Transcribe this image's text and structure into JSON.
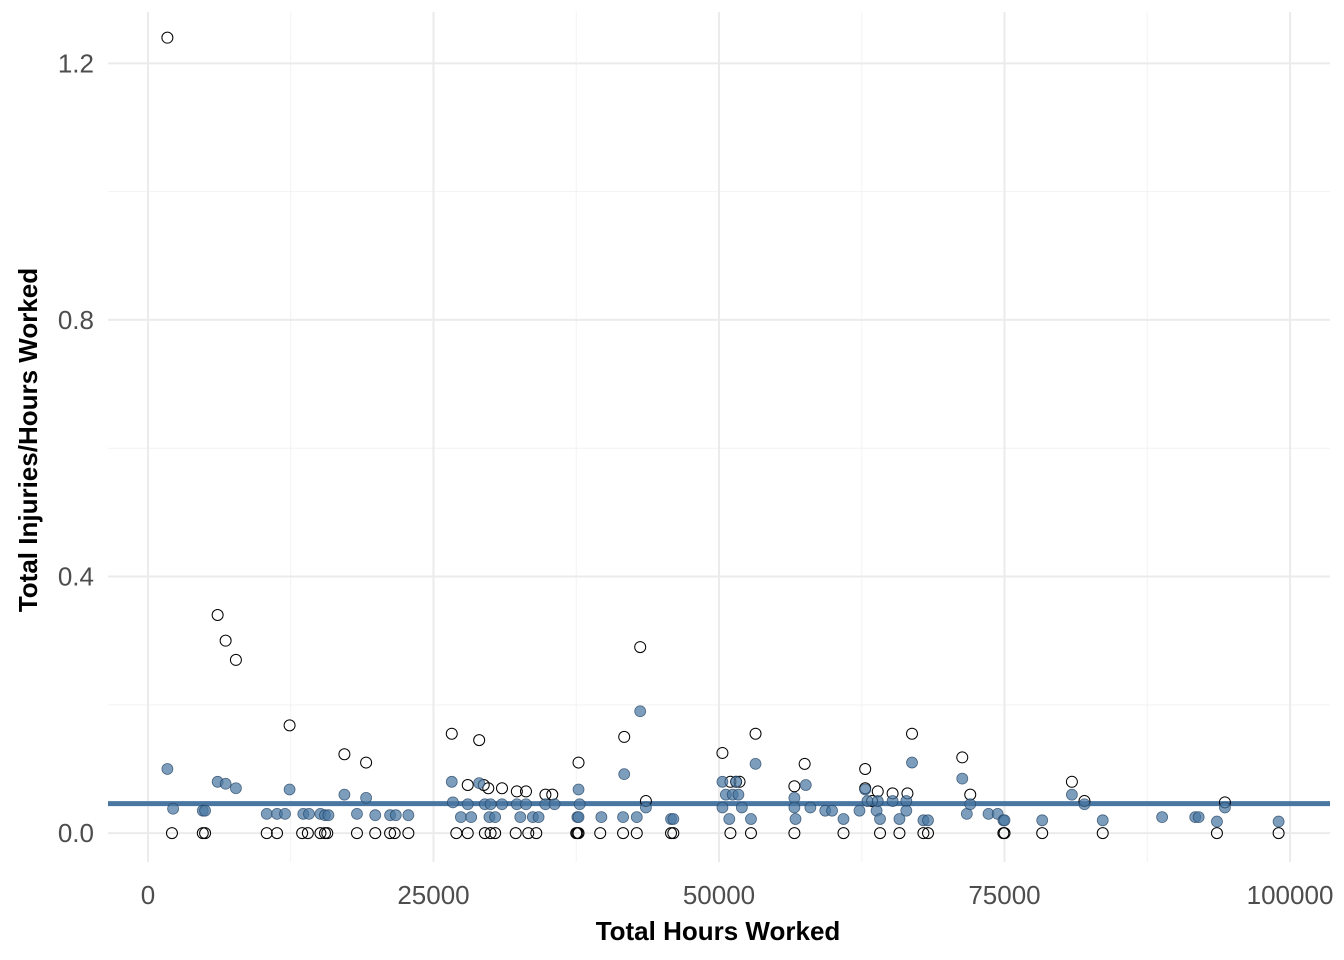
{
  "chart_data": {
    "type": "scatter",
    "title": "",
    "xlabel": "Total Hours Worked",
    "ylabel": "Total Injuries/Hours Worked",
    "xlim": [
      -3500,
      103500
    ],
    "ylim": [
      -0.045,
      1.28
    ],
    "x_ticks": [
      0,
      25000,
      50000,
      75000,
      100000
    ],
    "x_tick_labels": [
      "0",
      "25000",
      "50000",
      "75000",
      "100000"
    ],
    "y_ticks": [
      0.0,
      0.4,
      0.8,
      1.2
    ],
    "y_tick_labels": [
      "0.0",
      "0.4",
      "0.8",
      "1.2"
    ],
    "grid": true,
    "legend": "none",
    "reference_line": {
      "y": 0.046,
      "color": "#4a77a2"
    },
    "colors": {
      "filled": "#4a77a2",
      "hollow_stroke": "#000000"
    },
    "series": [
      {
        "style": "hollow",
        "points": [
          [
            1700,
            1.24
          ],
          [
            6100,
            0.34
          ],
          [
            6800,
            0.3
          ],
          [
            7700,
            0.27
          ],
          [
            12400,
            0.168
          ],
          [
            17200,
            0.123
          ],
          [
            19100,
            0.11
          ],
          [
            26600,
            0.155
          ],
          [
            29000,
            0.145
          ],
          [
            37700,
            0.11
          ],
          [
            41700,
            0.15
          ],
          [
            43100,
            0.29
          ],
          [
            43600,
            0.05
          ],
          [
            50300,
            0.125
          ],
          [
            53200,
            0.155
          ],
          [
            57500,
            0.108
          ],
          [
            62800,
            0.1
          ],
          [
            66900,
            0.155
          ],
          [
            71300,
            0.118
          ],
          [
            72000,
            0.06
          ],
          [
            80900,
            0.08
          ],
          [
            82000,
            0.05
          ],
          [
            94300,
            0.048
          ],
          [
            28000,
            0.075
          ],
          [
            29400,
            0.075
          ],
          [
            29800,
            0.07
          ],
          [
            31000,
            0.07
          ],
          [
            32300,
            0.065
          ],
          [
            33100,
            0.065
          ],
          [
            34800,
            0.06
          ],
          [
            35400,
            0.06
          ],
          [
            51000,
            0.08
          ],
          [
            51500,
            0.08
          ],
          [
            51800,
            0.08
          ],
          [
            56600,
            0.073
          ],
          [
            62800,
            0.07
          ],
          [
            63900,
            0.065
          ],
          [
            65200,
            0.062
          ],
          [
            66500,
            0.062
          ],
          [
            63400,
            0.05
          ],
          [
            2100,
            0.0
          ],
          [
            4800,
            0.0
          ],
          [
            5000,
            0.0
          ],
          [
            10400,
            0.0
          ],
          [
            11300,
            0.0
          ],
          [
            13500,
            0.0
          ],
          [
            14000,
            0.0
          ],
          [
            15100,
            0.0
          ],
          [
            15500,
            0.0
          ],
          [
            15700,
            0.0
          ],
          [
            18300,
            0.0
          ],
          [
            19900,
            0.0
          ],
          [
            21200,
            0.0
          ],
          [
            21600,
            0.0
          ],
          [
            22800,
            0.0
          ],
          [
            27000,
            0.0
          ],
          [
            28000,
            0.0
          ],
          [
            29500,
            0.0
          ],
          [
            30000,
            0.0
          ],
          [
            30400,
            0.0
          ],
          [
            32200,
            0.0
          ],
          [
            33300,
            0.0
          ],
          [
            34000,
            0.0
          ],
          [
            37500,
            0.0
          ],
          [
            37600,
            0.0
          ],
          [
            37700,
            0.0
          ],
          [
            39600,
            0.0
          ],
          [
            41600,
            0.0
          ],
          [
            42800,
            0.0
          ],
          [
            45800,
            0.0
          ],
          [
            46000,
            0.0
          ],
          [
            51000,
            0.0
          ],
          [
            52800,
            0.0
          ],
          [
            56600,
            0.0
          ],
          [
            60900,
            0.0
          ],
          [
            64100,
            0.0
          ],
          [
            65800,
            0.0
          ],
          [
            67900,
            0.0
          ],
          [
            68300,
            0.0
          ],
          [
            74900,
            0.0
          ],
          [
            75000,
            0.0
          ],
          [
            78300,
            0.0
          ],
          [
            83600,
            0.0
          ],
          [
            93600,
            0.0
          ],
          [
            99000,
            0.0
          ]
        ]
      },
      {
        "style": "filled",
        "points": [
          [
            1700,
            0.1
          ],
          [
            2200,
            0.038
          ],
          [
            4800,
            0.035
          ],
          [
            5000,
            0.035
          ],
          [
            6100,
            0.08
          ],
          [
            6800,
            0.077
          ],
          [
            7700,
            0.07
          ],
          [
            10400,
            0.03
          ],
          [
            11300,
            0.03
          ],
          [
            12000,
            0.03
          ],
          [
            12400,
            0.068
          ],
          [
            13600,
            0.03
          ],
          [
            14100,
            0.03
          ],
          [
            15100,
            0.03
          ],
          [
            15500,
            0.028
          ],
          [
            15800,
            0.028
          ],
          [
            17200,
            0.06
          ],
          [
            18300,
            0.03
          ],
          [
            19100,
            0.055
          ],
          [
            19900,
            0.028
          ],
          [
            21200,
            0.028
          ],
          [
            21700,
            0.028
          ],
          [
            22800,
            0.028
          ],
          [
            26600,
            0.08
          ],
          [
            26700,
            0.048
          ],
          [
            27400,
            0.025
          ],
          [
            28000,
            0.045
          ],
          [
            28300,
            0.025
          ],
          [
            29000,
            0.078
          ],
          [
            29500,
            0.045
          ],
          [
            29900,
            0.025
          ],
          [
            30000,
            0.045
          ],
          [
            30400,
            0.025
          ],
          [
            31000,
            0.045
          ],
          [
            32300,
            0.045
          ],
          [
            32600,
            0.025
          ],
          [
            33100,
            0.045
          ],
          [
            33700,
            0.025
          ],
          [
            34200,
            0.025
          ],
          [
            34800,
            0.045
          ],
          [
            35600,
            0.045
          ],
          [
            37600,
            0.025
          ],
          [
            37700,
            0.025
          ],
          [
            37800,
            0.045
          ],
          [
            37700,
            0.068
          ],
          [
            39700,
            0.025
          ],
          [
            41600,
            0.025
          ],
          [
            41700,
            0.092
          ],
          [
            42800,
            0.025
          ],
          [
            43100,
            0.19
          ],
          [
            43600,
            0.04
          ],
          [
            45800,
            0.022
          ],
          [
            46000,
            0.022
          ],
          [
            50300,
            0.08
          ],
          [
            50300,
            0.04
          ],
          [
            50600,
            0.06
          ],
          [
            50900,
            0.022
          ],
          [
            51200,
            0.06
          ],
          [
            51500,
            0.08
          ],
          [
            51700,
            0.06
          ],
          [
            52000,
            0.04
          ],
          [
            52800,
            0.022
          ],
          [
            53200,
            0.108
          ],
          [
            56600,
            0.055
          ],
          [
            56600,
            0.04
          ],
          [
            56700,
            0.022
          ],
          [
            57600,
            0.075
          ],
          [
            58000,
            0.04
          ],
          [
            59300,
            0.035
          ],
          [
            59900,
            0.035
          ],
          [
            60900,
            0.022
          ],
          [
            62300,
            0.035
          ],
          [
            62800,
            0.068
          ],
          [
            63000,
            0.05
          ],
          [
            63800,
            0.035
          ],
          [
            64100,
            0.022
          ],
          [
            63900,
            0.05
          ],
          [
            65200,
            0.05
          ],
          [
            65800,
            0.022
          ],
          [
            66400,
            0.05
          ],
          [
            66400,
            0.035
          ],
          [
            66900,
            0.11
          ],
          [
            67900,
            0.02
          ],
          [
            68300,
            0.02
          ],
          [
            71300,
            0.085
          ],
          [
            71700,
            0.03
          ],
          [
            72000,
            0.045
          ],
          [
            73600,
            0.03
          ],
          [
            74400,
            0.03
          ],
          [
            74900,
            0.02
          ],
          [
            75000,
            0.02
          ],
          [
            78300,
            0.02
          ],
          [
            80900,
            0.06
          ],
          [
            82000,
            0.045
          ],
          [
            83600,
            0.02
          ],
          [
            88800,
            0.025
          ],
          [
            91700,
            0.025
          ],
          [
            92000,
            0.025
          ],
          [
            93600,
            0.018
          ],
          [
            94300,
            0.04
          ],
          [
            99000,
            0.018
          ]
        ]
      }
    ]
  }
}
